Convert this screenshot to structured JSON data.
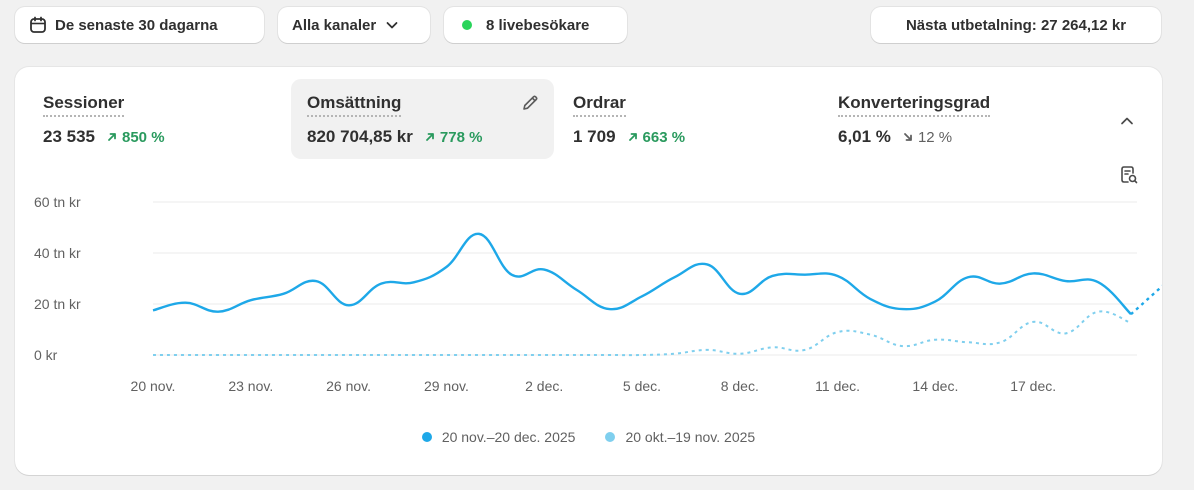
{
  "toolbar": {
    "date_range": "De senaste 30 dagarna",
    "channels": "Alla kanaler",
    "live_visitors": "8 livebesökare",
    "payout": "Nästa utbetalning: 27 264,12 kr"
  },
  "metrics": [
    {
      "label": "Sessioner",
      "value": "23 535",
      "change": "850 %",
      "direction": "up"
    },
    {
      "label": "Omsättning",
      "value": "820 704,85 kr",
      "change": "778 %",
      "direction": "up"
    },
    {
      "label": "Ordrar",
      "value": "1 709",
      "change": "663 %",
      "direction": "up"
    },
    {
      "label": "Konverteringsgrad",
      "value": "6,01 %",
      "change": "12 %",
      "direction": "down"
    }
  ],
  "colors": {
    "current": "#1ea8e8",
    "previous": "#7fcfee",
    "positive": "#2a9a5e",
    "live": "#29d45a"
  },
  "icons": {
    "date": "calendar-icon",
    "channels": "chevron-down-icon",
    "edit": "pencil-icon",
    "collapse": "chevron-up-icon",
    "zoom": "search-document-icon"
  },
  "chart_data": {
    "type": "line",
    "y_ticks": [
      "60 tn kr",
      "40 tn kr",
      "20 tn kr",
      "0 kr"
    ],
    "ylim": [
      0,
      60
    ],
    "x_ticks": [
      "20 nov.",
      "23 nov.",
      "26 nov.",
      "29 nov.",
      "2 dec.",
      "5 dec.",
      "8 dec.",
      "11 dec.",
      "14 dec.",
      "17 dec."
    ],
    "x": [
      0,
      1,
      2,
      3,
      4,
      5,
      6,
      7,
      8,
      9,
      10,
      11,
      12,
      13,
      14,
      15,
      16,
      17,
      18,
      19,
      20,
      21,
      22,
      23,
      24,
      25,
      26,
      27,
      28,
      29,
      30
    ],
    "series": [
      {
        "name": "20 nov.–20 dec. 2025",
        "style": "solid",
        "values": [
          17.5,
          20.5,
          17,
          21.5,
          24,
          29,
          19.5,
          28,
          28.5,
          34.5,
          47.5,
          31.5,
          33.5,
          25.5,
          18,
          23,
          30.5,
          35.5,
          24,
          31,
          31.5,
          31,
          22,
          18,
          21,
          30.5,
          28,
          32,
          29,
          28.5,
          16
        ]
      },
      {
        "name": "20 okt.–19 nov. 2025",
        "style": "dotted",
        "values": [
          0,
          0,
          0,
          0,
          0,
          0,
          0,
          0,
          0,
          0,
          0,
          0,
          0,
          0,
          0,
          0,
          0.5,
          2,
          0.5,
          3,
          2,
          9,
          8,
          3.5,
          6,
          5,
          5,
          13,
          8.5,
          17,
          12.5
        ]
      }
    ],
    "tail": {
      "x": [
        30,
        31
      ],
      "values": [
        16,
        27.5
      ]
    }
  }
}
